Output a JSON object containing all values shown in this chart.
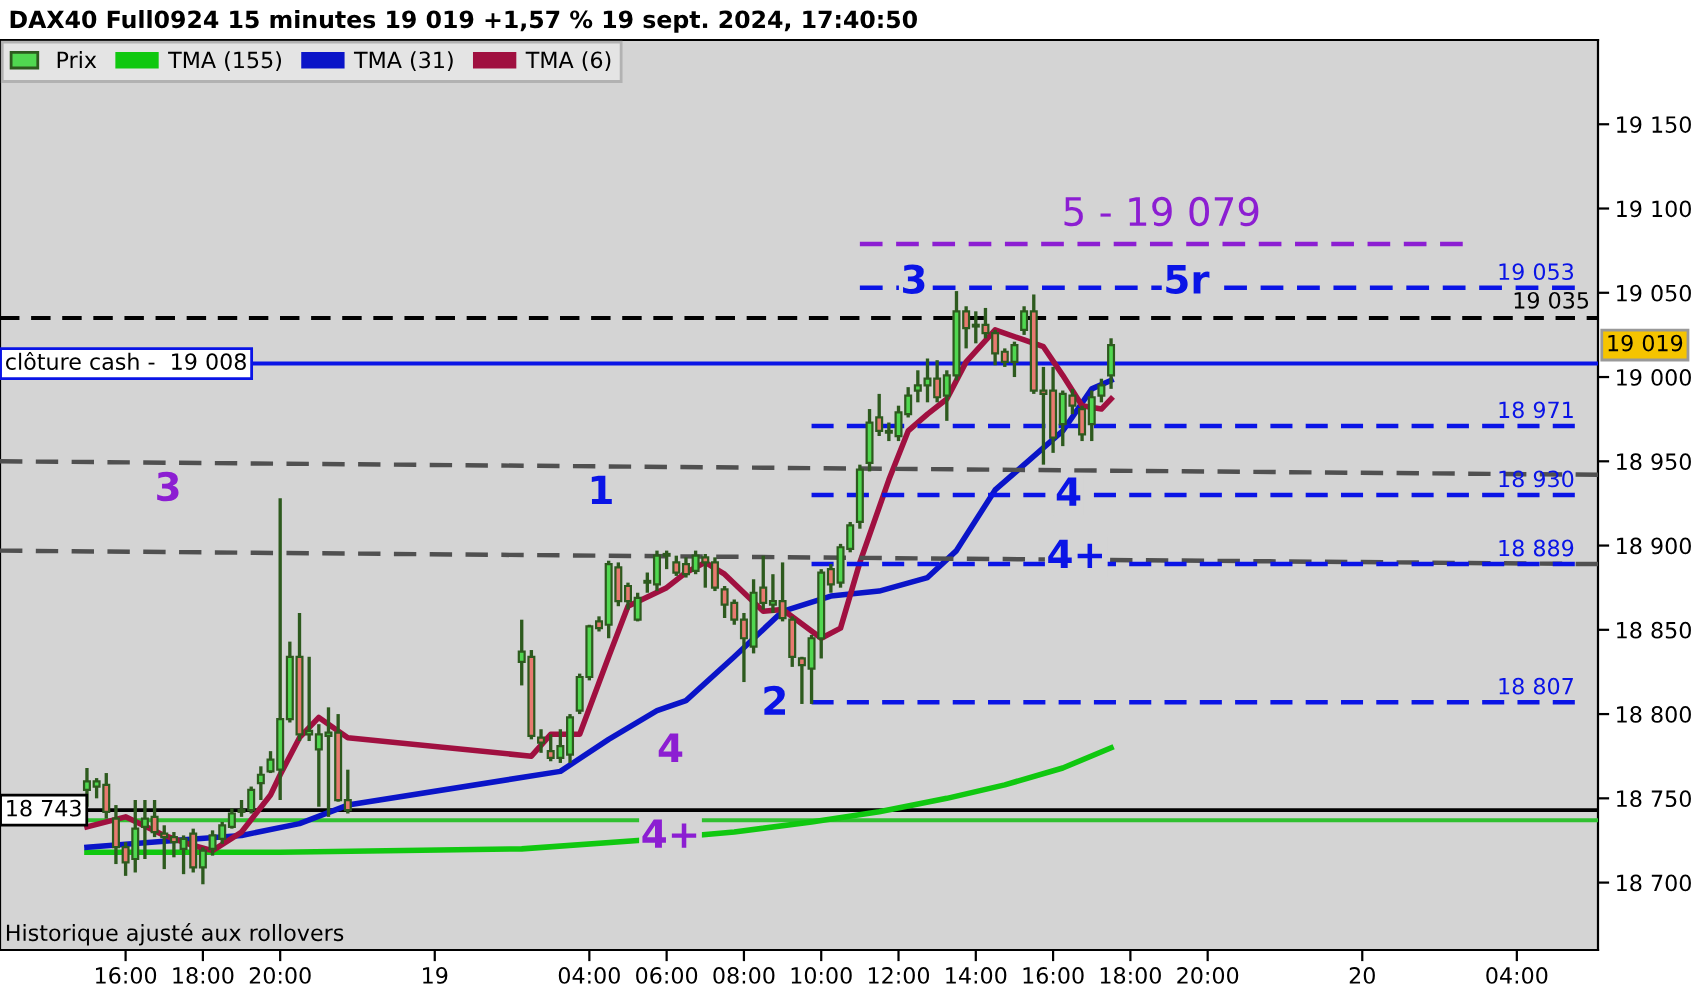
{
  "chart_data": {
    "type": "candlestick",
    "title": "DAX40 Full0924 15 minutes 19 019 +1,57 % 19 sept. 2024, 17:40:50",
    "xlim": [
      "2024-09-18T12:45",
      "2024-09-20T06:06"
    ],
    "xticks": [
      {
        "value": "2024-09-18T16:00",
        "label": "16:00"
      },
      {
        "value": "2024-09-18T18:00",
        "label": "18:00"
      },
      {
        "value": "2024-09-18T20:00",
        "label": "20:00"
      },
      {
        "value": "2024-09-19T00:00",
        "label": "19"
      },
      {
        "value": "2024-09-19T04:00",
        "label": "04:00"
      },
      {
        "value": "2024-09-19T06:00",
        "label": "06:00"
      },
      {
        "value": "2024-09-19T08:00",
        "label": "08:00"
      },
      {
        "value": "2024-09-19T10:00",
        "label": "10:00"
      },
      {
        "value": "2024-09-19T12:00",
        "label": "12:00"
      },
      {
        "value": "2024-09-19T14:00",
        "label": "14:00"
      },
      {
        "value": "2024-09-19T16:00",
        "label": "16:00"
      },
      {
        "value": "2024-09-19T18:00",
        "label": "18:00"
      },
      {
        "value": "2024-09-19T20:00",
        "label": "20:00"
      },
      {
        "value": "2024-09-20T00:00",
        "label": "20"
      },
      {
        "value": "2024-09-20T04:00",
        "label": "04:00"
      }
    ],
    "ylim": [
      18660,
      19200
    ],
    "yticks": [
      {
        "value": 18700,
        "label": "18 700"
      },
      {
        "value": 18750,
        "label": "18 750"
      },
      {
        "value": 18800,
        "label": "18 800"
      },
      {
        "value": 18850,
        "label": "18 850"
      },
      {
        "value": 18900,
        "label": "18 900"
      },
      {
        "value": 18950,
        "label": "18 950"
      },
      {
        "value": 19000,
        "label": "19 000"
      },
      {
        "value": 19050,
        "label": "19 050"
      },
      {
        "value": 19100,
        "label": "19 100"
      },
      {
        "value": 19150,
        "label": "19 150"
      }
    ],
    "legend": "top left",
    "series": [
      {
        "name": "Prix",
        "x": [
          "2024-09-18T15:00",
          "2024-09-18T15:15",
          "2024-09-18T15:30",
          "2024-09-18T15:45",
          "2024-09-18T16:00",
          "2024-09-18T16:15",
          "2024-09-18T16:30",
          "2024-09-18T16:45",
          "2024-09-18T17:00",
          "2024-09-18T17:15",
          "2024-09-18T17:30",
          "2024-09-18T17:45",
          "2024-09-18T18:00",
          "2024-09-18T18:15",
          "2024-09-18T18:30",
          "2024-09-18T18:45",
          "2024-09-18T19:00",
          "2024-09-18T19:15",
          "2024-09-18T19:30",
          "2024-09-18T19:45",
          "2024-09-18T20:00",
          "2024-09-18T20:15",
          "2024-09-18T20:30",
          "2024-09-18T20:45",
          "2024-09-18T21:00",
          "2024-09-18T21:15",
          "2024-09-18T21:30",
          "2024-09-18T21:45",
          "2024-09-19T02:15",
          "2024-09-19T02:30",
          "2024-09-19T02:45",
          "2024-09-19T03:00",
          "2024-09-19T03:15",
          "2024-09-19T03:30",
          "2024-09-19T03:45",
          "2024-09-19T04:00",
          "2024-09-19T04:15",
          "2024-09-19T04:30",
          "2024-09-19T04:45",
          "2024-09-19T05:00",
          "2024-09-19T05:15",
          "2024-09-19T05:30",
          "2024-09-19T05:45",
          "2024-09-19T06:00",
          "2024-09-19T06:15",
          "2024-09-19T06:30",
          "2024-09-19T06:45",
          "2024-09-19T07:00",
          "2024-09-19T07:15",
          "2024-09-19T07:30",
          "2024-09-19T07:45",
          "2024-09-19T08:00",
          "2024-09-19T08:15",
          "2024-09-19T08:30",
          "2024-09-19T08:45",
          "2024-09-19T09:00",
          "2024-09-19T09:15",
          "2024-09-19T09:30",
          "2024-09-19T09:45",
          "2024-09-19T10:00",
          "2024-09-19T10:15",
          "2024-09-19T10:30",
          "2024-09-19T10:45",
          "2024-09-19T11:00",
          "2024-09-19T11:15",
          "2024-09-19T11:30",
          "2024-09-19T11:45",
          "2024-09-19T12:00",
          "2024-09-19T12:15",
          "2024-09-19T12:30",
          "2024-09-19T12:45",
          "2024-09-19T13:00",
          "2024-09-19T13:15",
          "2024-09-19T13:30",
          "2024-09-19T13:45",
          "2024-09-19T14:00",
          "2024-09-19T14:15",
          "2024-09-19T14:30",
          "2024-09-19T14:45",
          "2024-09-19T15:00",
          "2024-09-19T15:15",
          "2024-09-19T15:30",
          "2024-09-19T15:45",
          "2024-09-19T16:00",
          "2024-09-19T16:15",
          "2024-09-19T16:30",
          "2024-09-19T16:45",
          "2024-09-19T17:00",
          "2024-09-19T17:15",
          "2024-09-19T17:30"
        ],
        "ohlc": [
          [
            18755,
            18768,
            18745,
            18760
          ],
          [
            18757,
            18762,
            18750,
            18760
          ],
          [
            18758,
            18765,
            18738,
            18742
          ],
          [
            18738,
            18746,
            18711,
            18721
          ],
          [
            18721,
            18724,
            18704,
            18712
          ],
          [
            18714,
            18749,
            18706,
            18732
          ],
          [
            18733,
            18749,
            18714,
            18738
          ],
          [
            18739,
            18749,
            18727,
            18730
          ],
          [
            18729,
            18734,
            18708,
            18727
          ],
          [
            18727,
            18730,
            18715,
            18724
          ],
          [
            18720,
            18728,
            18705,
            18726
          ],
          [
            18729,
            18732,
            18706,
            18709
          ],
          [
            18709,
            18721,
            18699,
            18719
          ],
          [
            18720,
            18731,
            18716,
            18728
          ],
          [
            18726,
            18736,
            18723,
            18734
          ],
          [
            18733,
            18744,
            18732,
            18741
          ],
          [
            18742,
            18749,
            18739,
            18743
          ],
          [
            18743,
            18757,
            18741,
            18755
          ],
          [
            18759,
            18769,
            18749,
            18764
          ],
          [
            18766,
            18778,
            18765,
            18773
          ],
          [
            18767,
            18928,
            18749,
            18797
          ],
          [
            18797,
            18843,
            18795,
            18834
          ],
          [
            18834,
            18860,
            18784,
            18788
          ],
          [
            18788,
            18834,
            18784,
            18790
          ],
          [
            18779,
            18794,
            18745,
            18788
          ],
          [
            18787,
            18804,
            18739,
            18789
          ],
          [
            18789,
            18800,
            18748,
            18749
          ],
          [
            18749,
            18767,
            18741,
            18743
          ],
          [
            18831,
            18856,
            18817,
            18837
          ],
          [
            18834,
            18838,
            18785,
            18787
          ],
          [
            18786,
            18791,
            18777,
            18783
          ],
          [
            18778,
            18788,
            18772,
            18774
          ],
          [
            18774,
            18791,
            18771,
            18781
          ],
          [
            18776,
            18800,
            18771,
            18798
          ],
          [
            18802,
            18824,
            18800,
            18822
          ],
          [
            18822,
            18853,
            18820,
            18852
          ],
          [
            18855,
            18858,
            18849,
            18851
          ],
          [
            18853,
            18891,
            18845,
            18889
          ],
          [
            18887,
            18890,
            18864,
            18867
          ],
          [
            18876,
            18878,
            18862,
            18867
          ],
          [
            18856,
            18872,
            18855,
            18869
          ],
          [
            18878,
            18884,
            18872,
            18879
          ],
          [
            18877,
            18897,
            18873,
            18894
          ],
          [
            18895,
            18897,
            18886,
            18894
          ],
          [
            18890,
            18894,
            18882,
            18884
          ],
          [
            18889,
            18893,
            18881,
            18883
          ],
          [
            18885,
            18897,
            18883,
            18894
          ],
          [
            18893,
            18895,
            18875,
            18890
          ],
          [
            18890,
            18893,
            18873,
            18875
          ],
          [
            18874,
            18876,
            18857,
            18865
          ],
          [
            18866,
            18868,
            18853,
            18856
          ],
          [
            18856,
            18860,
            18819,
            18845
          ],
          [
            18840,
            18880,
            18836,
            18872
          ],
          [
            18875,
            18894,
            18862,
            18866
          ],
          [
            18865,
            18883,
            18860,
            18867
          ],
          [
            18867,
            18890,
            18855,
            18857
          ],
          [
            18856,
            18858,
            18828,
            18834
          ],
          [
            18833,
            18834,
            18806,
            18829
          ],
          [
            18827,
            18847,
            18806,
            18845
          ],
          [
            18845,
            18886,
            18833,
            18884
          ],
          [
            18886,
            18889,
            18872,
            18877
          ],
          [
            18878,
            18901,
            18875,
            18899
          ],
          [
            18898,
            18914,
            18896,
            18912
          ],
          [
            18914,
            18948,
            18910,
            18945
          ],
          [
            18949,
            18981,
            18944,
            18973
          ],
          [
            18976,
            18990,
            18965,
            18968
          ],
          [
            18968,
            18973,
            18962,
            18967
          ],
          [
            18965,
            18983,
            18962,
            18979
          ],
          [
            18978,
            18994,
            18976,
            18989
          ],
          [
            18992,
            19004,
            18985,
            18995
          ],
          [
            18995,
            19011,
            18985,
            18999
          ],
          [
            18999,
            19010,
            18985,
            18988
          ],
          [
            18989,
            19004,
            18974,
            19001
          ],
          [
            19001,
            19051,
            18998,
            19039
          ],
          [
            19039,
            19042,
            19017,
            19029
          ],
          [
            19030,
            19039,
            19020,
            19031
          ],
          [
            19031,
            19041,
            19023,
            19026
          ],
          [
            19026,
            19028,
            19007,
            19014
          ],
          [
            19015,
            19017,
            19006,
            19009
          ],
          [
            19009,
            19021,
            19000,
            19019
          ],
          [
            19028,
            19042,
            19025,
            19039
          ],
          [
            19039,
            19049,
            18990,
            18992
          ],
          [
            18992,
            19006,
            18948,
            18990
          ],
          [
            18992,
            19006,
            18955,
            18964
          ],
          [
            18972,
            18992,
            18959,
            18990
          ],
          [
            18989,
            18993,
            18978,
            18983
          ],
          [
            18981,
            18983,
            18962,
            18966
          ],
          [
            18972,
            18992,
            18962,
            18988
          ],
          [
            18989,
            18999,
            18985,
            18995
          ],
          [
            19001,
            19023,
            18993,
            19019
          ]
        ],
        "colors": [
          "#50d850",
          "#50d850",
          "#e87a70",
          "#e87a70",
          "#e87a70",
          "#50d850",
          "#50d850",
          "#e87a70",
          "#e87a70",
          "#e87a70",
          "#50d850",
          "#e87a70",
          "#50d850",
          "#50d850",
          "#50d850",
          "#50d850",
          "#50d850",
          "#50d850",
          "#50d850",
          "#50d850",
          "#50d850",
          "#50d850",
          "#e87a70",
          "#50d850",
          "#50d850",
          "#50d850",
          "#e87a70",
          "#e87a70",
          "#50d850",
          "#e87a70",
          "#e87a70",
          "#e87a70",
          "#50d850",
          "#50d850",
          "#50d850",
          "#50d850",
          "#e87a70",
          "#50d850",
          "#e87a70",
          "#e87a70",
          "#50d850",
          "#50d850",
          "#50d850",
          "#e87a70",
          "#e87a70",
          "#e87a70",
          "#50d850",
          "#e87a70",
          "#e87a70",
          "#e87a70",
          "#e87a70",
          "#e87a70",
          "#50d850",
          "#e87a70",
          "#50d850",
          "#e87a70",
          "#e87a70",
          "#e87a70",
          "#50d850",
          "#50d850",
          "#e87a70",
          "#50d850",
          "#50d850",
          "#50d850",
          "#50d850",
          "#e87a70",
          "#e87a70",
          "#50d850",
          "#50d850",
          "#50d850",
          "#50d850",
          "#e87a70",
          "#50d850",
          "#50d850",
          "#e87a70",
          "#50d850",
          "#e87a70",
          "#e87a70",
          "#e87a70",
          "#50d850",
          "#50d850",
          "#e87a70",
          "#e87a70",
          "#e87a70",
          "#50d850",
          "#e87a70",
          "#e87a70",
          "#50d850",
          "#50d850",
          "#50d850"
        ]
      },
      {
        "type": "line",
        "name": "TMA (155)",
        "color": "#10c810",
        "x": [
          "2024-09-18T15:00",
          "2024-09-18T20:00",
          "2024-09-19T02:15",
          "2024-09-19T05:15",
          "2024-09-19T07:45",
          "2024-09-19T09:45",
          "2024-09-19T11:30",
          "2024-09-19T13:15",
          "2024-09-19T14:45",
          "2024-09-19T16:15",
          "2024-09-19T17:30"
        ],
        "values": [
          18718,
          18718,
          18720,
          18725,
          18730,
          18736,
          18742,
          18750,
          18758,
          18768,
          18780
        ]
      },
      {
        "type": "line",
        "name": "TMA (31)",
        "color": "#0a14c8",
        "x": [
          "2024-09-18T15:00",
          "2024-09-18T17:15",
          "2024-09-18T19:00",
          "2024-09-18T20:30",
          "2024-09-18T21:45",
          "2024-09-19T03:15",
          "2024-09-19T04:30",
          "2024-09-19T05:45",
          "2024-09-19T06:30",
          "2024-09-19T07:45",
          "2024-09-19T09:00",
          "2024-09-19T10:15",
          "2024-09-19T11:30",
          "2024-09-19T12:45",
          "2024-09-19T13:30",
          "2024-09-19T14:30",
          "2024-09-19T16:15",
          "2024-09-19T17:00",
          "2024-09-19T17:30"
        ],
        "values": [
          18721,
          18725,
          18728,
          18735,
          18746,
          18766,
          18785,
          18802,
          18808,
          18834,
          18861,
          18870,
          18873,
          18881,
          18897,
          18933,
          18968,
          18993,
          18998
        ]
      },
      {
        "type": "line",
        "name": "TMA (6)",
        "color": "#a01040",
        "x": [
          "2024-09-18T15:00",
          "2024-09-18T16:00",
          "2024-09-18T17:00",
          "2024-09-18T17:45",
          "2024-09-18T18:15",
          "2024-09-18T19:00",
          "2024-09-18T19:45",
          "2024-09-18T20:00",
          "2024-09-18T20:30",
          "2024-09-18T21:00",
          "2024-09-18T21:45",
          "2024-09-19T02:30",
          "2024-09-19T03:00",
          "2024-09-19T03:45",
          "2024-09-19T04:30",
          "2024-09-19T05:00",
          "2024-09-19T06:00",
          "2024-09-19T06:30",
          "2024-09-19T07:00",
          "2024-09-19T07:30",
          "2024-09-19T08:30",
          "2024-09-19T09:00",
          "2024-09-19T10:00",
          "2024-09-19T10:30",
          "2024-09-19T11:00",
          "2024-09-19T11:45",
          "2024-09-19T12:15",
          "2024-09-19T12:45",
          "2024-09-19T13:15",
          "2024-09-19T13:45",
          "2024-09-19T14:30",
          "2024-09-19T15:15",
          "2024-09-19T15:45",
          "2024-09-19T16:15",
          "2024-09-19T16:45",
          "2024-09-19T17:15",
          "2024-09-19T17:30"
        ],
        "values": [
          18733,
          18739,
          18728,
          18722,
          18719,
          18730,
          18752,
          18764,
          18786,
          18798,
          18786,
          18775,
          18788,
          18788,
          18834,
          18864,
          18875,
          18884,
          18890,
          18883,
          18861,
          18862,
          18845,
          18851,
          18890,
          18939,
          18968,
          18978,
          18987,
          19009,
          19028,
          19022,
          19018,
          19001,
          18983,
          18981,
          18987
        ]
      },
      {
        "type": "line",
        "line_style": "dashed",
        "color": "#505050",
        "x": [
          "2024-09-18T12:45",
          "2024-09-20T06:06"
        ],
        "values": [
          18950,
          18942
        ]
      },
      {
        "type": "line",
        "line_style": "dashed",
        "color": "#505050",
        "x": [
          "2024-09-18T12:45",
          "2024-09-20T06:06"
        ],
        "values": [
          18897,
          18889
        ]
      },
      {
        "type": "line",
        "line_style": "dashed",
        "color": "#8c1ed2",
        "x": [
          "2024-09-19T11:00",
          "2024-09-20T02:36"
        ],
        "values": [
          19079,
          19079
        ]
      },
      {
        "type": "line",
        "line_style": "dashed",
        "color": "#0a14e6",
        "x": [
          "2024-09-19T11:00",
          "2024-09-20T05:30"
        ],
        "values": [
          19053,
          19053
        ],
        "value_labels": [
          null,
          "19 053"
        ]
      },
      {
        "type": "line",
        "line_style": "dashed",
        "color": "#0a14e6",
        "x": [
          "2024-09-19T09:45",
          "2024-09-20T05:30"
        ],
        "values": [
          18971,
          18971
        ],
        "value_labels": [
          null,
          "18 971"
        ]
      },
      {
        "type": "line",
        "line_style": "dashed",
        "color": "#0a14e6",
        "x": [
          "2024-09-19T09:45",
          "2024-09-20T05:30"
        ],
        "values": [
          18930,
          18930
        ],
        "value_labels": [
          null,
          "18 930"
        ]
      },
      {
        "type": "line",
        "line_style": "dashed",
        "color": "#0a14e6",
        "x": [
          "2024-09-19T09:45",
          "2024-09-20T05:30"
        ],
        "values": [
          18889,
          18889
        ],
        "value_labels": [
          null,
          "18 889"
        ]
      },
      {
        "type": "line",
        "line_style": "dashed",
        "color": "#0a14e6",
        "x": [
          "2024-09-19T09:45",
          "2024-09-20T05:30"
        ],
        "values": [
          18807,
          18807
        ],
        "value_labels": [
          null,
          "18 807"
        ]
      }
    ],
    "ref_lines": [
      {
        "axis": "y",
        "value": 19035,
        "label": "19 035",
        "color": "#000000",
        "line_style": "dashed"
      },
      {
        "axis": "y",
        "value": 19008,
        "label": "clôture cash -  19 008",
        "color": "#0a14e6",
        "line_style": "solid"
      },
      {
        "axis": "y",
        "value": 18743,
        "label": "18 743",
        "color": "#000000",
        "line_style": "solid"
      },
      {
        "axis": "y",
        "value": 18737,
        "color": "#30c030",
        "line_style": "solid"
      }
    ],
    "annotations": [
      "Historique ajusté aux rollovers",
      "19 019",
      "5 - 19 079",
      {
        "text": "3",
        "x": "2024-09-18T17:06",
        "y": 18933
      },
      {
        "text": "4",
        "x": "2024-09-19T06:06",
        "y": 18778
      },
      {
        "text": "4+",
        "x": "2024-09-19T06:06",
        "y": 18727
      },
      {
        "text": "1",
        "x": "2024-09-19T04:18",
        "y": 18931
      },
      {
        "text": "2",
        "x": "2024-09-19T08:48",
        "y": 18806
      },
      {
        "text": "3",
        "x": "2024-09-19T12:24",
        "y": 19056
      },
      {
        "text": "5r",
        "x": "2024-09-19T19:27",
        "y": 19056
      },
      {
        "text": "4",
        "x": "2024-09-19T16:24",
        "y": 18930
      },
      {
        "text": "4+",
        "x": "2024-09-19T16:36",
        "y": 18893
      }
    ]
  }
}
